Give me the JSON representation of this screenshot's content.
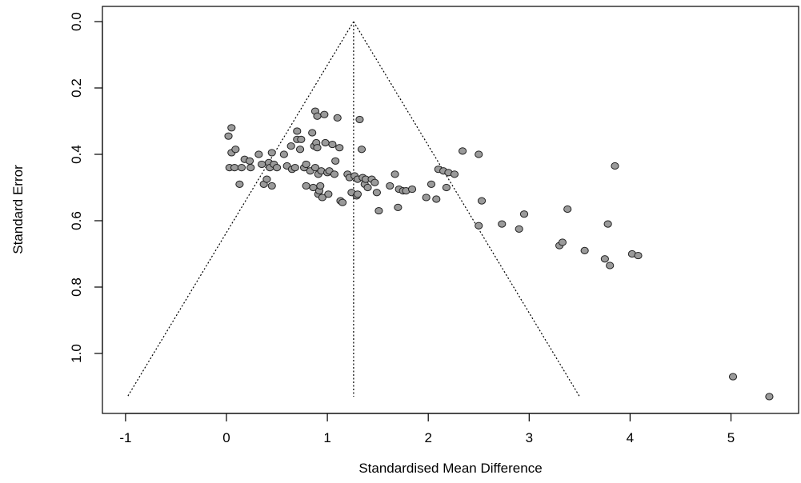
{
  "chart_data": {
    "type": "scatter",
    "subtype": "funnel-plot",
    "title": "",
    "xlabel": "Standardised Mean Difference",
    "ylabel": "Standard Error",
    "xlim": [
      -1.0,
      5.6
    ],
    "ylim": [
      1.15,
      0.0
    ],
    "y_reversed": true,
    "x_ticks": [
      -1,
      0,
      1,
      2,
      3,
      4,
      5
    ],
    "x_tick_labels": [
      "-1",
      "0",
      "1",
      "2",
      "3",
      "4",
      "5"
    ],
    "y_ticks": [
      0.0,
      0.2,
      0.4,
      0.6,
      0.8,
      1.0
    ],
    "y_tick_labels": [
      "0.0",
      "0.2",
      "0.4",
      "0.6",
      "0.8",
      "1.0"
    ],
    "grid": false,
    "legend": "none",
    "pooled_estimate": 1.26,
    "funnel_max_se": 1.13,
    "funnel_left_at_max_se": -0.98,
    "funnel_right_at_max_se": 3.5,
    "point_color": "#9a9a9a",
    "points": [
      {
        "x": 0.02,
        "y": 0.345
      },
      {
        "x": 0.05,
        "y": 0.32
      },
      {
        "x": 0.05,
        "y": 0.395
      },
      {
        "x": 0.09,
        "y": 0.385
      },
      {
        "x": 0.03,
        "y": 0.44
      },
      {
        "x": 0.08,
        "y": 0.44
      },
      {
        "x": 0.13,
        "y": 0.49
      },
      {
        "x": 0.15,
        "y": 0.44
      },
      {
        "x": 0.18,
        "y": 0.415
      },
      {
        "x": 0.23,
        "y": 0.42
      },
      {
        "x": 0.24,
        "y": 0.44
      },
      {
        "x": 0.32,
        "y": 0.4
      },
      {
        "x": 0.35,
        "y": 0.43
      },
      {
        "x": 0.37,
        "y": 0.49
      },
      {
        "x": 0.4,
        "y": 0.475
      },
      {
        "x": 0.42,
        "y": 0.425
      },
      {
        "x": 0.43,
        "y": 0.44
      },
      {
        "x": 0.45,
        "y": 0.395
      },
      {
        "x": 0.47,
        "y": 0.43
      },
      {
        "x": 0.5,
        "y": 0.44
      },
      {
        "x": 0.45,
        "y": 0.495
      },
      {
        "x": 0.57,
        "y": 0.4
      },
      {
        "x": 0.6,
        "y": 0.435
      },
      {
        "x": 0.64,
        "y": 0.375
      },
      {
        "x": 0.65,
        "y": 0.445
      },
      {
        "x": 0.68,
        "y": 0.44
      },
      {
        "x": 0.7,
        "y": 0.33
      },
      {
        "x": 0.7,
        "y": 0.355
      },
      {
        "x": 0.73,
        "y": 0.385
      },
      {
        "x": 0.74,
        "y": 0.355
      },
      {
        "x": 0.77,
        "y": 0.44
      },
      {
        "x": 0.79,
        "y": 0.43
      },
      {
        "x": 0.79,
        "y": 0.495
      },
      {
        "x": 0.83,
        "y": 0.45
      },
      {
        "x": 0.85,
        "y": 0.335
      },
      {
        "x": 0.86,
        "y": 0.5
      },
      {
        "x": 0.87,
        "y": 0.375
      },
      {
        "x": 0.88,
        "y": 0.27
      },
      {
        "x": 0.88,
        "y": 0.44
      },
      {
        "x": 0.89,
        "y": 0.365
      },
      {
        "x": 0.9,
        "y": 0.38
      },
      {
        "x": 0.9,
        "y": 0.285
      },
      {
        "x": 0.91,
        "y": 0.46
      },
      {
        "x": 0.91,
        "y": 0.52
      },
      {
        "x": 0.92,
        "y": 0.51
      },
      {
        "x": 0.93,
        "y": 0.495
      },
      {
        "x": 0.94,
        "y": 0.45
      },
      {
        "x": 0.95,
        "y": 0.53
      },
      {
        "x": 0.97,
        "y": 0.28
      },
      {
        "x": 0.98,
        "y": 0.365
      },
      {
        "x": 1.0,
        "y": 0.455
      },
      {
        "x": 1.01,
        "y": 0.52
      },
      {
        "x": 1.02,
        "y": 0.45
      },
      {
        "x": 1.05,
        "y": 0.37
      },
      {
        "x": 1.07,
        "y": 0.46
      },
      {
        "x": 1.08,
        "y": 0.42
      },
      {
        "x": 1.1,
        "y": 0.29
      },
      {
        "x": 1.12,
        "y": 0.38
      },
      {
        "x": 1.13,
        "y": 0.54
      },
      {
        "x": 1.15,
        "y": 0.545
      },
      {
        "x": 1.2,
        "y": 0.46
      },
      {
        "x": 1.22,
        "y": 0.47
      },
      {
        "x": 1.24,
        "y": 0.515
      },
      {
        "x": 1.27,
        "y": 0.465
      },
      {
        "x": 1.29,
        "y": 0.525
      },
      {
        "x": 1.3,
        "y": 0.52
      },
      {
        "x": 1.3,
        "y": 0.475
      },
      {
        "x": 1.32,
        "y": 0.295
      },
      {
        "x": 1.34,
        "y": 0.385
      },
      {
        "x": 1.35,
        "y": 0.47
      },
      {
        "x": 1.37,
        "y": 0.49
      },
      {
        "x": 1.38,
        "y": 0.475
      },
      {
        "x": 1.4,
        "y": 0.5
      },
      {
        "x": 1.44,
        "y": 0.475
      },
      {
        "x": 1.47,
        "y": 0.485
      },
      {
        "x": 1.49,
        "y": 0.515
      },
      {
        "x": 1.51,
        "y": 0.57
      },
      {
        "x": 1.62,
        "y": 0.495
      },
      {
        "x": 1.67,
        "y": 0.46
      },
      {
        "x": 1.7,
        "y": 0.56
      },
      {
        "x": 1.71,
        "y": 0.505
      },
      {
        "x": 1.75,
        "y": 0.51
      },
      {
        "x": 1.78,
        "y": 0.51
      },
      {
        "x": 1.84,
        "y": 0.505
      },
      {
        "x": 1.98,
        "y": 0.53
      },
      {
        "x": 2.03,
        "y": 0.49
      },
      {
        "x": 2.08,
        "y": 0.535
      },
      {
        "x": 2.1,
        "y": 0.445
      },
      {
        "x": 2.15,
        "y": 0.45
      },
      {
        "x": 2.18,
        "y": 0.5
      },
      {
        "x": 2.2,
        "y": 0.455
      },
      {
        "x": 2.26,
        "y": 0.46
      },
      {
        "x": 2.34,
        "y": 0.39
      },
      {
        "x": 2.5,
        "y": 0.4
      },
      {
        "x": 2.5,
        "y": 0.615
      },
      {
        "x": 2.53,
        "y": 0.54
      },
      {
        "x": 2.73,
        "y": 0.61
      },
      {
        "x": 2.9,
        "y": 0.625
      },
      {
        "x": 2.95,
        "y": 0.58
      },
      {
        "x": 3.3,
        "y": 0.675
      },
      {
        "x": 3.33,
        "y": 0.665
      },
      {
        "x": 3.38,
        "y": 0.565
      },
      {
        "x": 3.55,
        "y": 0.69
      },
      {
        "x": 3.75,
        "y": 0.715
      },
      {
        "x": 3.78,
        "y": 0.61
      },
      {
        "x": 3.8,
        "y": 0.735
      },
      {
        "x": 3.85,
        "y": 0.435
      },
      {
        "x": 4.02,
        "y": 0.7
      },
      {
        "x": 4.08,
        "y": 0.705
      },
      {
        "x": 5.02,
        "y": 1.07
      },
      {
        "x": 5.38,
        "y": 1.13
      }
    ]
  }
}
